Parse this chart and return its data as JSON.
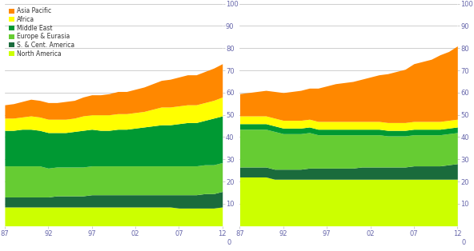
{
  "years": [
    1987,
    1988,
    1989,
    1990,
    1991,
    1992,
    1993,
    1994,
    1995,
    1996,
    1997,
    1998,
    1999,
    2000,
    2001,
    2002,
    2003,
    2004,
    2005,
    2006,
    2007,
    2008,
    2009,
    2010,
    2011,
    2012
  ],
  "colors": {
    "North America": "#ccff00",
    "S. & Cent. America": "#1a6b3c",
    "Europe & Eurasia": "#66cc33",
    "Middle East": "#009933",
    "Africa": "#ffff00",
    "Asia Pacific": "#ff8800"
  },
  "legend_order": [
    "Asia Pacific",
    "Africa",
    "Middle East",
    "Europe & Eurasia",
    "S. & Cent. America",
    "North America"
  ],
  "stack_order": [
    "North America",
    "S. & Cent. America",
    "Europe & Eurasia",
    "Middle East",
    "Africa",
    "Asia Pacific"
  ],
  "chart1": {
    "North America": [
      8.5,
      8.5,
      8.5,
      8.5,
      8.5,
      8.5,
      8.5,
      8.5,
      8.5,
      8.5,
      8.5,
      8.5,
      8.5,
      8.5,
      8.5,
      8.5,
      8.5,
      8.5,
      8.5,
      8.5,
      8.0,
      8.0,
      8.0,
      8.0,
      8.0,
      8.5
    ],
    "S. & Cent. America": [
      4.5,
      4.5,
      4.5,
      4.5,
      4.5,
      4.5,
      5.0,
      5.0,
      5.0,
      5.0,
      5.5,
      5.5,
      5.5,
      5.5,
      5.5,
      5.5,
      5.5,
      5.5,
      5.5,
      5.5,
      6.0,
      6.0,
      6.0,
      6.5,
      6.5,
      7.0
    ],
    "Europe & Eurasia": [
      14,
      14,
      14,
      14,
      14,
      13,
      13,
      13,
      13,
      13,
      13,
      13,
      13,
      13,
      13,
      13,
      13,
      13,
      13,
      13,
      13,
      13,
      13,
      13,
      13,
      13
    ],
    "Middle East": [
      16,
      16,
      16.5,
      16.5,
      16,
      16,
      15.5,
      15.5,
      16,
      16.5,
      16.5,
      16,
      16,
      16.5,
      16.5,
      17,
      17.5,
      18,
      18.5,
      18.5,
      19,
      19.5,
      19.5,
      20,
      21,
      21
    ],
    "Africa": [
      5.5,
      5.5,
      5.5,
      6,
      6,
      6,
      6,
      6,
      6,
      6.5,
      6.5,
      7,
      7,
      7,
      7,
      7,
      7,
      7.5,
      8,
      8,
      8,
      8,
      8,
      8,
      8,
      8.5
    ],
    "Asia Pacific": [
      6,
      6.5,
      7,
      7.5,
      7.5,
      7.5,
      7.5,
      8,
      8,
      8.5,
      9,
      9,
      9.5,
      10,
      10,
      10.5,
      11,
      11.5,
      12,
      12.5,
      13,
      13.5,
      13.5,
      14,
      14.5,
      15
    ]
  },
  "chart2": {
    "North America": [
      22,
      22,
      22,
      22,
      21,
      21,
      21,
      21,
      21,
      21,
      21,
      21,
      21,
      21,
      21,
      21,
      21,
      21,
      21,
      21,
      21,
      21,
      21,
      21,
      21,
      21
    ],
    "S. & Cent. America": [
      4.5,
      4.5,
      4.5,
      4.5,
      4.5,
      4.5,
      4.5,
      4.5,
      5,
      5,
      5,
      5,
      5,
      5,
      5.5,
      5.5,
      5.5,
      5.5,
      5.5,
      5.5,
      6,
      6,
      6,
      6,
      6.5,
      7
    ],
    "Europe & Eurasia": [
      17,
      17,
      17,
      17,
      17,
      16,
      16,
      16,
      16,
      15,
      15,
      15,
      15,
      15,
      14.5,
      14.5,
      14.5,
      14,
      14,
      14,
      14,
      14,
      14,
      14,
      14,
      14
    ],
    "Middle East": [
      2.5,
      2.5,
      2.5,
      2.5,
      2.5,
      2.5,
      2.5,
      2.5,
      2.5,
      2.5,
      2.5,
      2.5,
      2.5,
      2.5,
      2.5,
      2.5,
      2.5,
      2.5,
      2.5,
      2.5,
      2.5,
      2.5,
      2.5,
      2.5,
      2.5,
      2.5
    ],
    "Africa": [
      3.5,
      3.5,
      3.5,
      3.5,
      3.5,
      3.5,
      3.5,
      3.5,
      3.5,
      3.5,
      3.5,
      3.5,
      3.5,
      3.5,
      3.5,
      3.5,
      3.5,
      3.5,
      3.5,
      3.5,
      3.5,
      3.5,
      3.5,
      3.5,
      3.5,
      3.5
    ],
    "Asia Pacific": [
      10,
      10.5,
      11,
      11.5,
      12,
      12.5,
      13,
      13.5,
      14,
      15,
      16,
      17,
      17.5,
      18,
      19,
      20,
      21,
      22,
      23,
      24,
      26,
      27,
      28,
      30,
      31,
      33
    ]
  },
  "ylim": [
    0,
    100
  ],
  "yticks": [
    10,
    20,
    30,
    40,
    50,
    60,
    70,
    80,
    90,
    100
  ],
  "xtick_years": [
    1987,
    1992,
    1997,
    2002,
    2007,
    2012
  ],
  "xtick_labels": [
    "87",
    "92",
    "97",
    "02",
    "07",
    "12"
  ],
  "background_color": "#ffffff",
  "grid_color": "#bbbbbb",
  "text_color": "#6666aa"
}
